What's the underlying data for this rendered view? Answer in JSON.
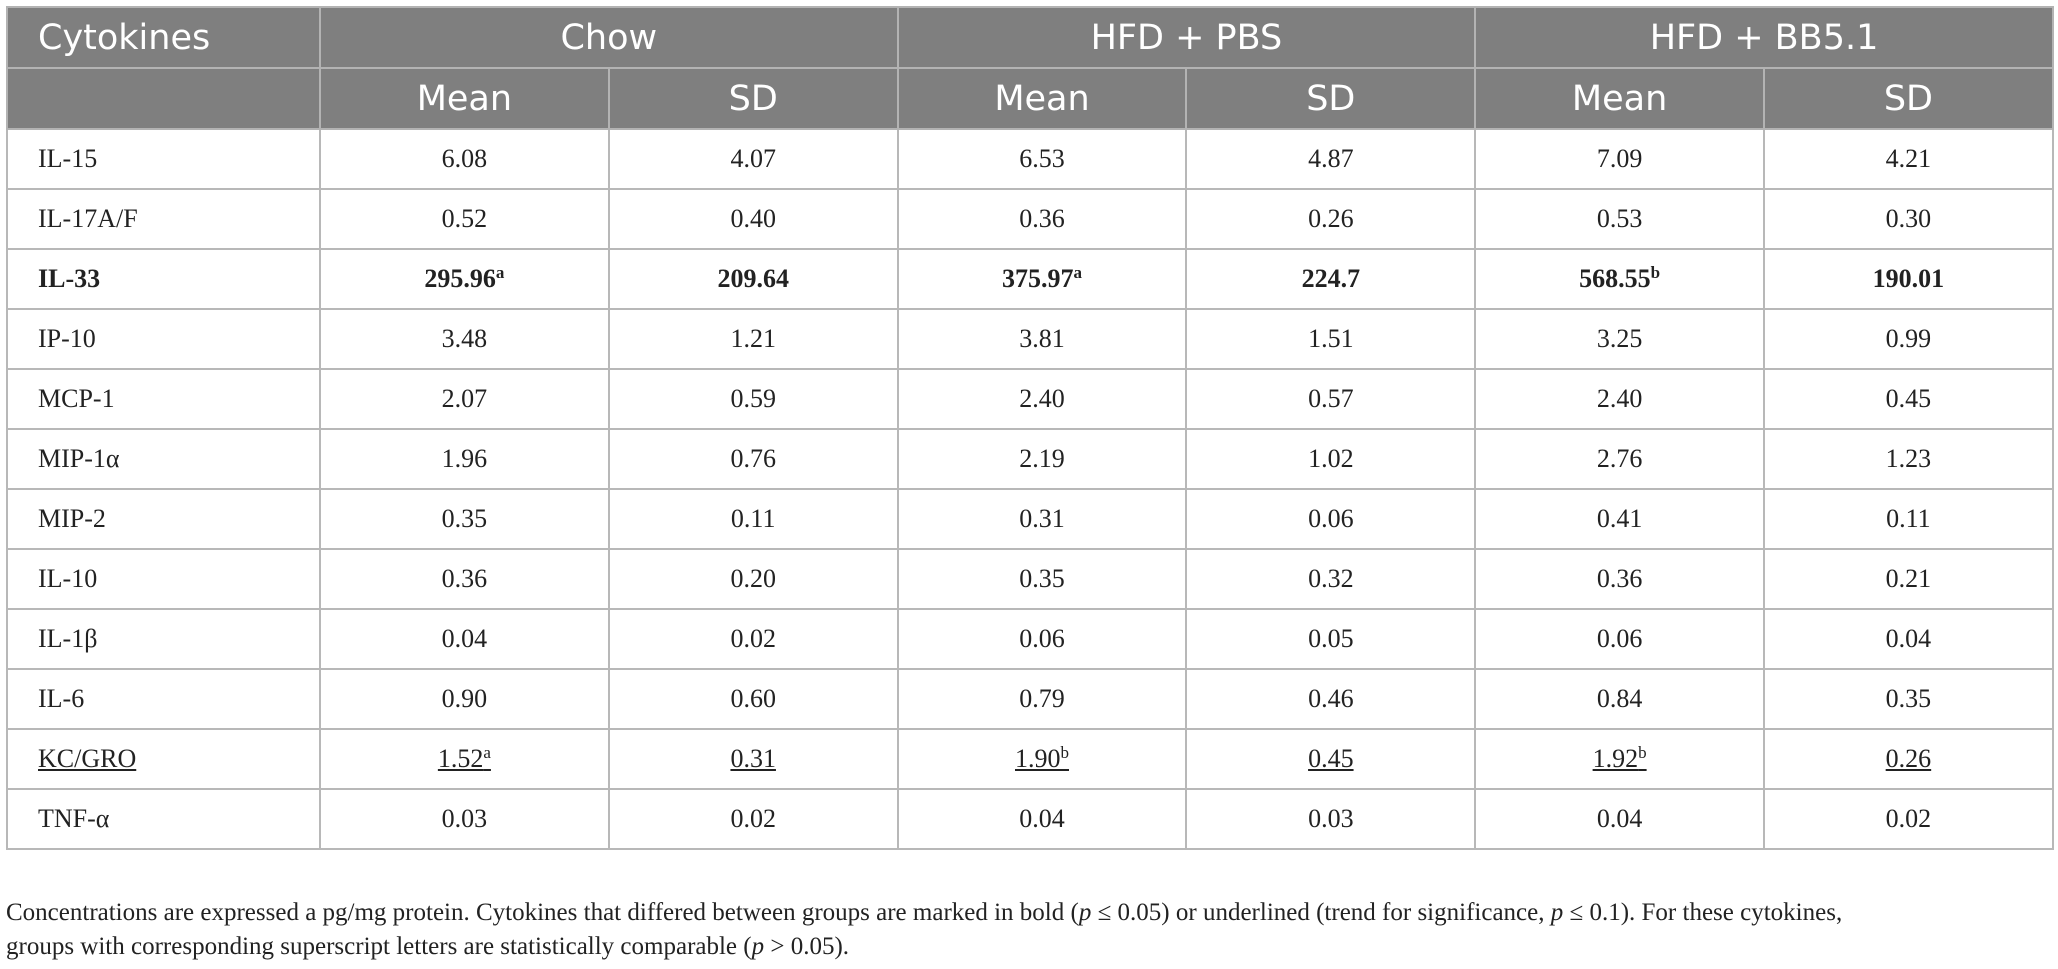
{
  "header": {
    "col_name": "Cytokines",
    "groups": [
      "Chow",
      "HFD + PBS",
      "HFD + BB5.1"
    ],
    "mean_label": "Mean",
    "sd_label": "SD"
  },
  "rows": [
    {
      "name": "IL-15",
      "style": "normal",
      "cells": [
        {
          "v": "6.08",
          "s": ""
        },
        {
          "v": "4.07",
          "s": ""
        },
        {
          "v": "6.53",
          "s": ""
        },
        {
          "v": "4.87",
          "s": ""
        },
        {
          "v": "7.09",
          "s": ""
        },
        {
          "v": "4.21",
          "s": ""
        }
      ]
    },
    {
      "name": "IL-17A/F",
      "style": "normal",
      "cells": [
        {
          "v": "0.52",
          "s": ""
        },
        {
          "v": "0.40",
          "s": ""
        },
        {
          "v": "0.36",
          "s": ""
        },
        {
          "v": "0.26",
          "s": ""
        },
        {
          "v": "0.53",
          "s": ""
        },
        {
          "v": "0.30",
          "s": ""
        }
      ]
    },
    {
      "name": "IL-33",
      "style": "bold",
      "cells": [
        {
          "v": "295.96",
          "s": "a"
        },
        {
          "v": "209.64",
          "s": ""
        },
        {
          "v": "375.97",
          "s": "a"
        },
        {
          "v": "224.7",
          "s": ""
        },
        {
          "v": "568.55",
          "s": "b"
        },
        {
          "v": "190.01",
          "s": ""
        }
      ]
    },
    {
      "name": "IP-10",
      "style": "normal",
      "cells": [
        {
          "v": "3.48",
          "s": ""
        },
        {
          "v": "1.21",
          "s": ""
        },
        {
          "v": "3.81",
          "s": ""
        },
        {
          "v": "1.51",
          "s": ""
        },
        {
          "v": "3.25",
          "s": ""
        },
        {
          "v": "0.99",
          "s": ""
        }
      ]
    },
    {
      "name": "MCP-1",
      "style": "normal",
      "cells": [
        {
          "v": "2.07",
          "s": ""
        },
        {
          "v": "0.59",
          "s": ""
        },
        {
          "v": "2.40",
          "s": ""
        },
        {
          "v": "0.57",
          "s": ""
        },
        {
          "v": "2.40",
          "s": ""
        },
        {
          "v": "0.45",
          "s": ""
        }
      ]
    },
    {
      "name": "MIP-1α",
      "style": "normal",
      "cells": [
        {
          "v": "1.96",
          "s": ""
        },
        {
          "v": "0.76",
          "s": ""
        },
        {
          "v": "2.19",
          "s": ""
        },
        {
          "v": "1.02",
          "s": ""
        },
        {
          "v": "2.76",
          "s": ""
        },
        {
          "v": "1.23",
          "s": ""
        }
      ]
    },
    {
      "name": "MIP-2",
      "style": "normal",
      "cells": [
        {
          "v": "0.35",
          "s": ""
        },
        {
          "v": "0.11",
          "s": ""
        },
        {
          "v": "0.31",
          "s": ""
        },
        {
          "v": "0.06",
          "s": ""
        },
        {
          "v": "0.41",
          "s": ""
        },
        {
          "v": "0.11",
          "s": ""
        }
      ]
    },
    {
      "name": "IL-10",
      "style": "normal",
      "cells": [
        {
          "v": "0.36",
          "s": ""
        },
        {
          "v": "0.20",
          "s": ""
        },
        {
          "v": "0.35",
          "s": ""
        },
        {
          "v": "0.32",
          "s": ""
        },
        {
          "v": "0.36",
          "s": ""
        },
        {
          "v": "0.21",
          "s": ""
        }
      ]
    },
    {
      "name": "IL-1β",
      "style": "normal",
      "cells": [
        {
          "v": "0.04",
          "s": ""
        },
        {
          "v": "0.02",
          "s": ""
        },
        {
          "v": "0.06",
          "s": ""
        },
        {
          "v": "0.05",
          "s": ""
        },
        {
          "v": "0.06",
          "s": ""
        },
        {
          "v": "0.04",
          "s": ""
        }
      ]
    },
    {
      "name": "IL-6",
      "style": "normal",
      "cells": [
        {
          "v": "0.90",
          "s": ""
        },
        {
          "v": "0.60",
          "s": ""
        },
        {
          "v": "0.79",
          "s": ""
        },
        {
          "v": "0.46",
          "s": ""
        },
        {
          "v": "0.84",
          "s": ""
        },
        {
          "v": "0.35",
          "s": ""
        }
      ]
    },
    {
      "name": "KC/GRO",
      "style": "underline",
      "cells": [
        {
          "v": "1.52",
          "s": "a"
        },
        {
          "v": "0.31",
          "s": ""
        },
        {
          "v": "1.90",
          "s": "b"
        },
        {
          "v": "0.45",
          "s": ""
        },
        {
          "v": "1.92",
          "s": "b"
        },
        {
          "v": "0.26",
          "s": ""
        }
      ]
    },
    {
      "name": "TNF-α",
      "style": "normal",
      "cells": [
        {
          "v": "0.03",
          "s": ""
        },
        {
          "v": "0.02",
          "s": ""
        },
        {
          "v": "0.04",
          "s": ""
        },
        {
          "v": "0.03",
          "s": ""
        },
        {
          "v": "0.04",
          "s": ""
        },
        {
          "v": "0.02",
          "s": ""
        }
      ]
    }
  ],
  "footnote": {
    "line1": "Concentrations are expressed a pg/mg protein. Cytokines that differed between groups are marked in bold (p ≤ 0.05) or underlined (trend for significance, p ≤ 0.1). For these cytokines,",
    "line2": "groups with corresponding superscript letters are statistically comparable (p > 0.05)."
  },
  "colors": {
    "header_bg": "#7f7f7f",
    "header_text": "#ffffff",
    "grid": "#b8b8b8",
    "body_text": "#222222"
  }
}
